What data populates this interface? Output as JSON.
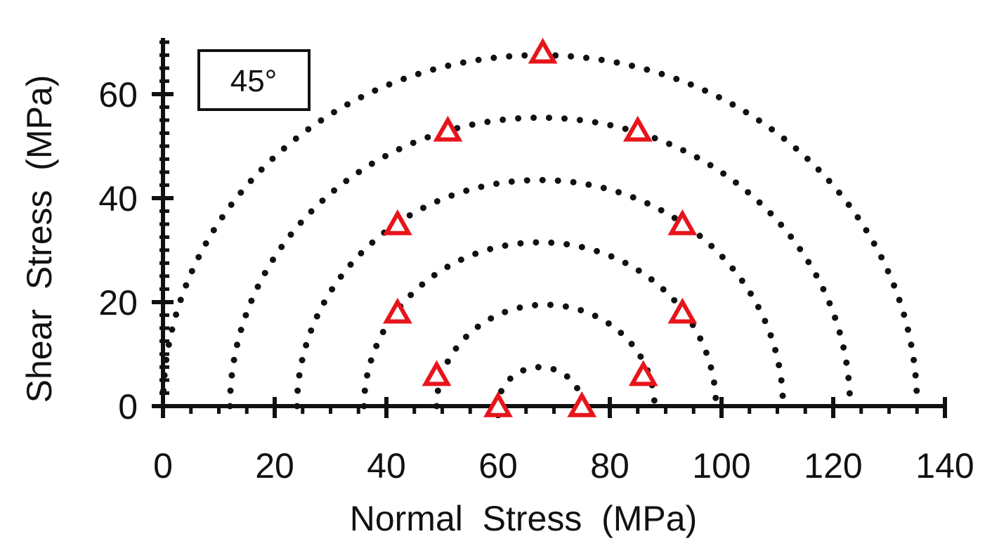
{
  "chart_data": {
    "type": "scatter",
    "title": "",
    "xlabel": "Normal  Stress  (MPa)",
    "ylabel": "Shear  Stress  (MPa)",
    "xlim": [
      0,
      140
    ],
    "ylim": [
      0,
      70
    ],
    "x_ticks": [
      0,
      20,
      40,
      60,
      80,
      100,
      120,
      140
    ],
    "y_ticks": [
      0,
      20,
      40,
      60
    ],
    "x_tick_labels": [
      "0",
      "20",
      "40",
      "60",
      "80",
      "100",
      "120",
      "140"
    ],
    "y_tick_labels": [
      "0",
      "20",
      "40",
      "60"
    ],
    "grid": false,
    "annotation": "45°",
    "circles": [
      {
        "center": 67.5,
        "radius": 7.5
      },
      {
        "center": 68.5,
        "radius": 19.5
      },
      {
        "center": 67.5,
        "radius": 31.5
      },
      {
        "center": 67.5,
        "radius": 43.5
      },
      {
        "center": 67.5,
        "radius": 55.5
      },
      {
        "center": 67.5,
        "radius": 67.5
      }
    ],
    "points": [
      {
        "x": 60,
        "y": 0
      },
      {
        "x": 75,
        "y": 0
      },
      {
        "x": 49,
        "y": 6
      },
      {
        "x": 86,
        "y": 6
      },
      {
        "x": 42,
        "y": 18
      },
      {
        "x": 93,
        "y": 18
      },
      {
        "x": 42,
        "y": 35
      },
      {
        "x": 93,
        "y": 35
      },
      {
        "x": 51,
        "y": 53
      },
      {
        "x": 85,
        "y": 53
      },
      {
        "x": 68,
        "y": 68
      }
    ],
    "colors": {
      "marker": "#e8141b",
      "circle": "#111111",
      "axis": "#111111"
    }
  }
}
